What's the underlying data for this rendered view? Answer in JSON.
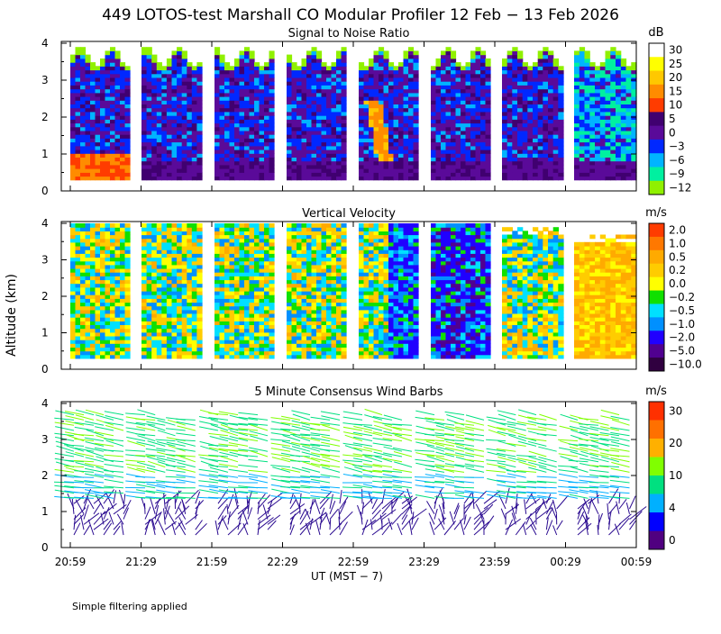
{
  "figure_title": "449 LOTOS-test Marshall CO Modular Profiler 12 Feb − 13 Feb 2026",
  "footnote": "Simple filtering applied",
  "xaxis": {
    "ticks": [
      "20:59",
      "21:29",
      "21:59",
      "22:29",
      "22:59",
      "23:29",
      "23:59",
      "00:29",
      "00:59"
    ],
    "label": "UT  (MST − 7)"
  },
  "yaxis": {
    "label": "Altitude (km)",
    "ticks": [
      "0",
      "1",
      "2",
      "3",
      "4"
    ]
  },
  "chart_data": [
    {
      "type": "heatmap",
      "title": "Signal to Noise Ratio",
      "xlabel": "",
      "ylabel": "Altitude (km)",
      "ylim": [
        0,
        4
      ],
      "colorbar": {
        "unit": "dB",
        "labels": [
          "30",
          "25",
          "20",
          "15",
          "10",
          "5",
          "0",
          "−3",
          "−6",
          "−9",
          "−12"
        ],
        "colors": [
          "#ffffff",
          "#ffff00",
          "#ffc800",
          "#ff8c00",
          "#ff3c00",
          "#400070",
          "#5a0a99",
          "#0028ff",
          "#00b4ff",
          "#00f0a0",
          "#90f000"
        ]
      },
      "blocks": [
        "20:59-21:24",
        "21:29-21:54",
        "21:59-22:24",
        "22:29-22:54",
        "22:59-23:24",
        "23:29-23:54",
        "23:59-00:24",
        "00:29-00:54"
      ]
    },
    {
      "type": "heatmap",
      "title": "Vertical Velocity",
      "xlabel": "",
      "ylabel": "Altitude (km)",
      "ylim": [
        0,
        4
      ],
      "colorbar": {
        "unit": "m/s",
        "labels": [
          "2.0",
          "1.0",
          "0.5",
          "0.2",
          "0.0",
          "−0.2",
          "−0.5",
          "−1.0",
          "−2.0",
          "−5.0",
          "−10.0"
        ],
        "colors": [
          "#ff3c00",
          "#ff7800",
          "#ffaa00",
          "#ffcc00",
          "#ffff00",
          "#10e000",
          "#00e0ff",
          "#0090ff",
          "#2000ff",
          "#500090",
          "#300040"
        ]
      },
      "blocks": [
        "20:59-21:24",
        "21:29-21:54",
        "21:59-22:24",
        "22:29-22:54",
        "22:59-23:24",
        "23:29-23:54",
        "23:59-00:24",
        "00:29-00:54"
      ]
    },
    {
      "type": "scatter",
      "title": "5 Minute Consensus Wind Barbs",
      "xlabel": "UT  (MST − 7)",
      "ylabel": "Altitude (km)",
      "ylim": [
        0,
        4
      ],
      "colorbar": {
        "unit": "m/s",
        "labels": [
          "30",
          "20",
          "10",
          "4",
          "0"
        ],
        "colors": [
          "#ff3000",
          "#ff7000",
          "#ffb000",
          "#80ff00",
          "#00e080",
          "#00b0ff",
          "#0000ff",
          "#500080"
        ]
      }
    }
  ]
}
